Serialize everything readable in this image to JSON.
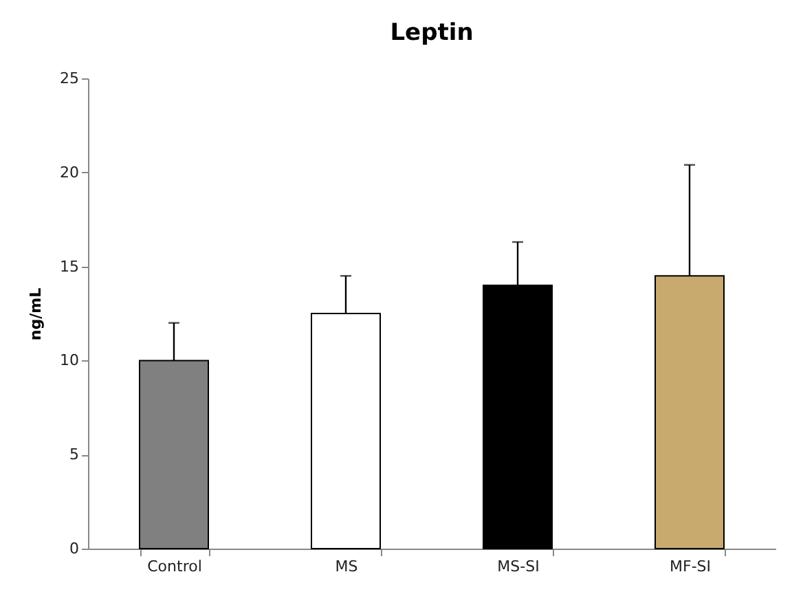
{
  "chart_data": {
    "type": "bar",
    "title": "Leptin",
    "ylabel": "ng/mL",
    "categories": [
      "Control",
      "MS",
      "MS-SI",
      "MF-SI"
    ],
    "values": [
      10.0,
      12.5,
      14.0,
      14.5
    ],
    "colors": [
      "#808080",
      "#ffffff",
      "#000000",
      "#c8a96e"
    ],
    "errors": [
      [
        10.0,
        12.0
      ],
      [
        12.5,
        14.5
      ],
      [
        14.0,
        16.3
      ],
      [
        14.5,
        20.4
      ]
    ],
    "ylim": [
      0,
      25
    ],
    "yticks": [
      0,
      5,
      10,
      15,
      20,
      25
    ]
  }
}
